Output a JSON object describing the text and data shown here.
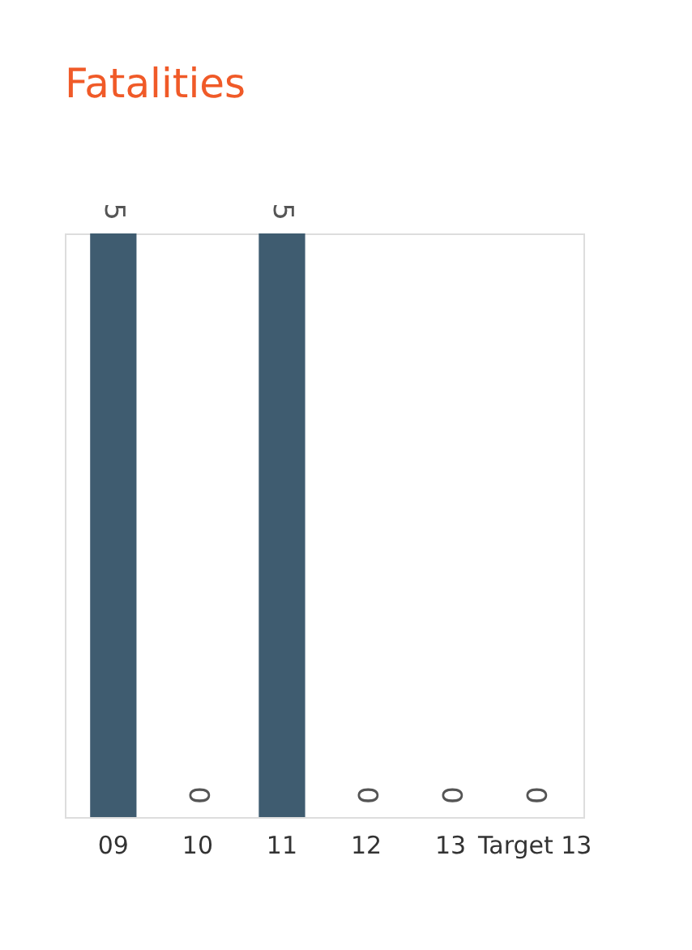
{
  "chart_data": {
    "type": "bar",
    "title": "Fatalities",
    "categories": [
      "09",
      "10",
      "11",
      "12",
      "13",
      "Target 13"
    ],
    "values": [
      5,
      0,
      5,
      0,
      0,
      0
    ],
    "color": "#3f5c70",
    "data_labels": true,
    "tick_labels": "x"
  }
}
